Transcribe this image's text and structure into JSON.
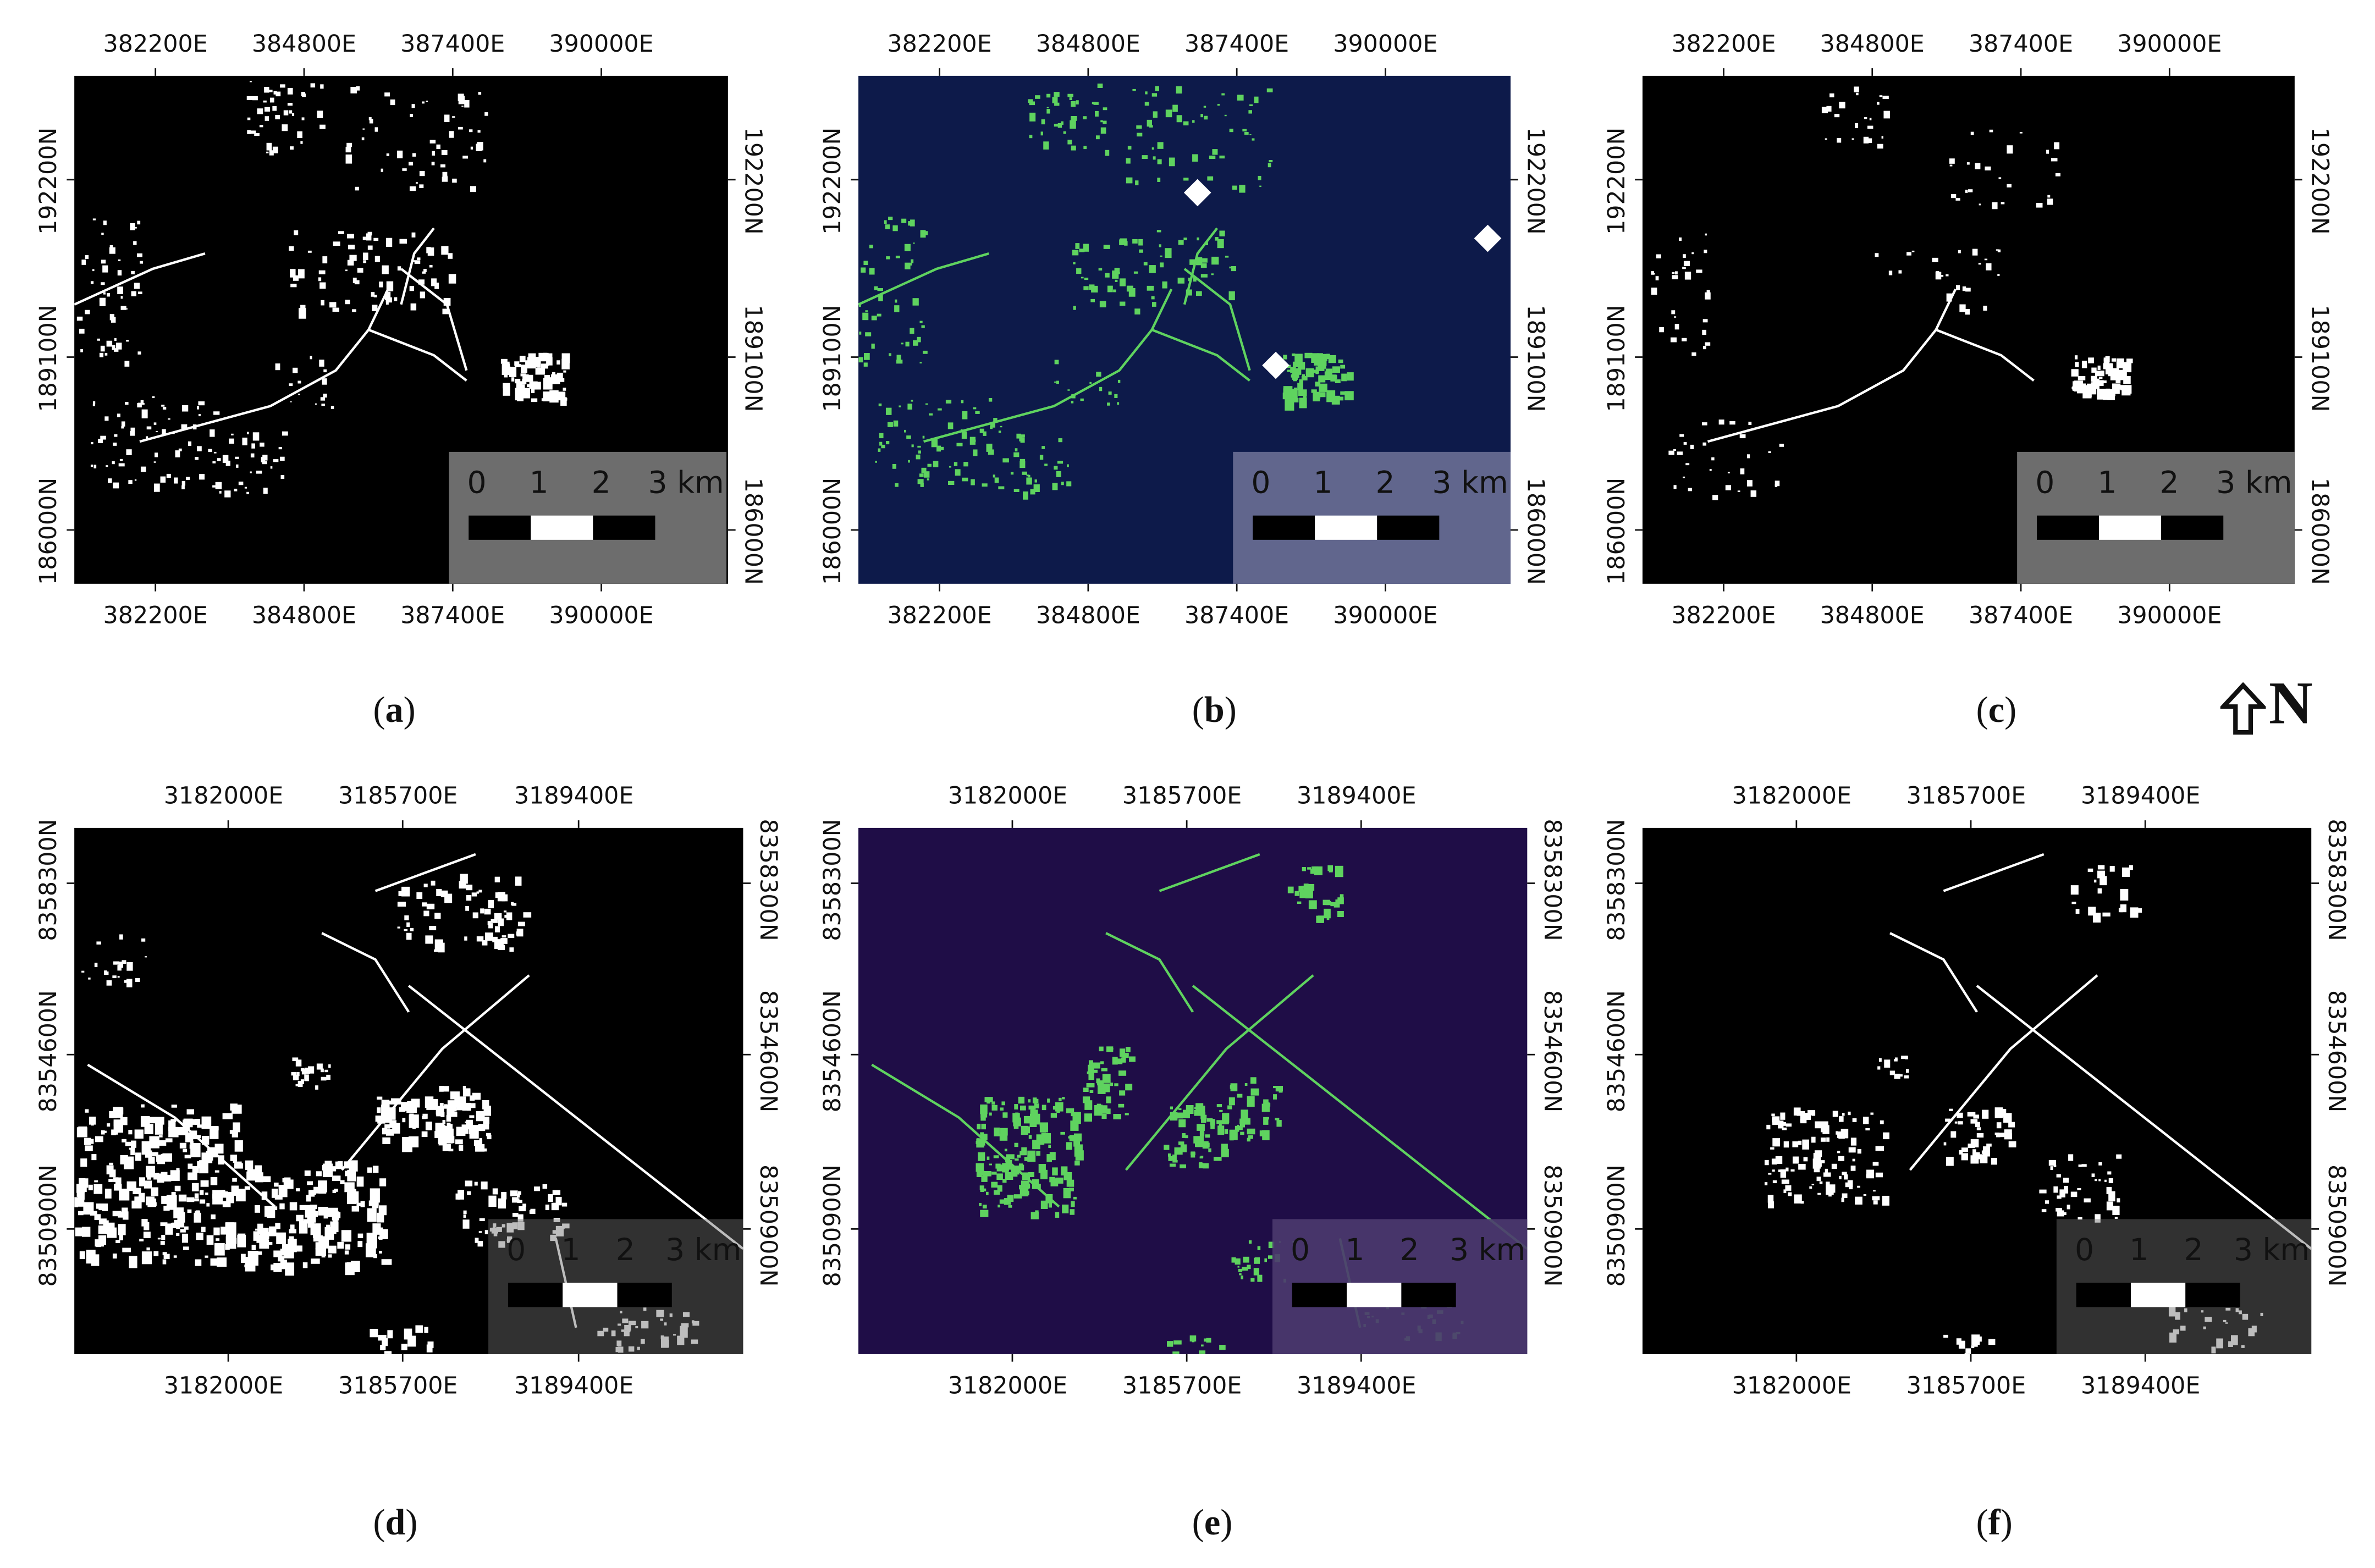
{
  "figure": {
    "north_label": "N",
    "north_arrow_icon": "up-arrow-outline-icon",
    "panels": [
      {
        "caption_open": "(",
        "caption_letter": "a",
        "caption_close": ")",
        "colormap": "binary-black-white",
        "x_ticks": [
          "382200E",
          "384800E",
          "387400E",
          "390000E"
        ],
        "y_ticks": [
          "192200N",
          "189100N",
          "186000N"
        ],
        "scale": {
          "labels": [
            "0",
            "1",
            "2",
            "3 km"
          ]
        }
      },
      {
        "caption_open": "(",
        "caption_letter": "b",
        "caption_close": ")",
        "colormap": "navy-green",
        "x_ticks": [
          "382200E",
          "384800E",
          "387400E",
          "390000E"
        ],
        "y_ticks": [
          "192200N",
          "189100N",
          "186000N"
        ],
        "scale": {
          "labels": [
            "0",
            "1",
            "2",
            "3 km"
          ]
        }
      },
      {
        "caption_open": "(",
        "caption_letter": "c",
        "caption_close": ")",
        "colormap": "binary-black-white",
        "x_ticks": [
          "382200E",
          "384800E",
          "387400E",
          "390000E"
        ],
        "y_ticks": [
          "192200N",
          "189100N",
          "186000N"
        ],
        "scale": {
          "labels": [
            "0",
            "1",
            "2",
            "3 km"
          ]
        }
      },
      {
        "caption_open": "(",
        "caption_letter": "d",
        "caption_close": ")",
        "colormap": "binary-black-white",
        "x_ticks": [
          "3182000E",
          "3185700E",
          "3189400E"
        ],
        "y_ticks": [
          "8358300N",
          "8354600N",
          "8350900N"
        ],
        "scale": {
          "labels": [
            "0",
            "1",
            "2",
            "3 km"
          ]
        }
      },
      {
        "caption_open": "(",
        "caption_letter": "e",
        "caption_close": ")",
        "colormap": "purple-green",
        "x_ticks": [
          "3182000E",
          "3185700E",
          "3189400E"
        ],
        "y_ticks": [
          "8358300N",
          "8354600N",
          "8350900N"
        ],
        "scale": {
          "labels": [
            "0",
            "1",
            "2",
            "3 km"
          ]
        }
      },
      {
        "caption_open": "(",
        "caption_letter": "f",
        "caption_close": ")",
        "colormap": "binary-black-white",
        "x_ticks": [
          "3182000E",
          "3185700E",
          "3189400E"
        ],
        "y_ticks": [
          "8358300N",
          "8354600N",
          "8350900N"
        ],
        "scale": {
          "labels": [
            "0",
            "1",
            "2",
            "3 km"
          ]
        }
      }
    ],
    "colors": {
      "binary_background": "#000000",
      "binary_foreground": "#ffffff",
      "navy_background": "#0d1a4a",
      "purple_background": "#1f0d47",
      "green_foreground": "#5fd35f",
      "scale_box_gray": "#6d6d6d",
      "scale_box_navy": "#6a6f95",
      "scale_box_purple": "#4b3a6e"
    }
  }
}
